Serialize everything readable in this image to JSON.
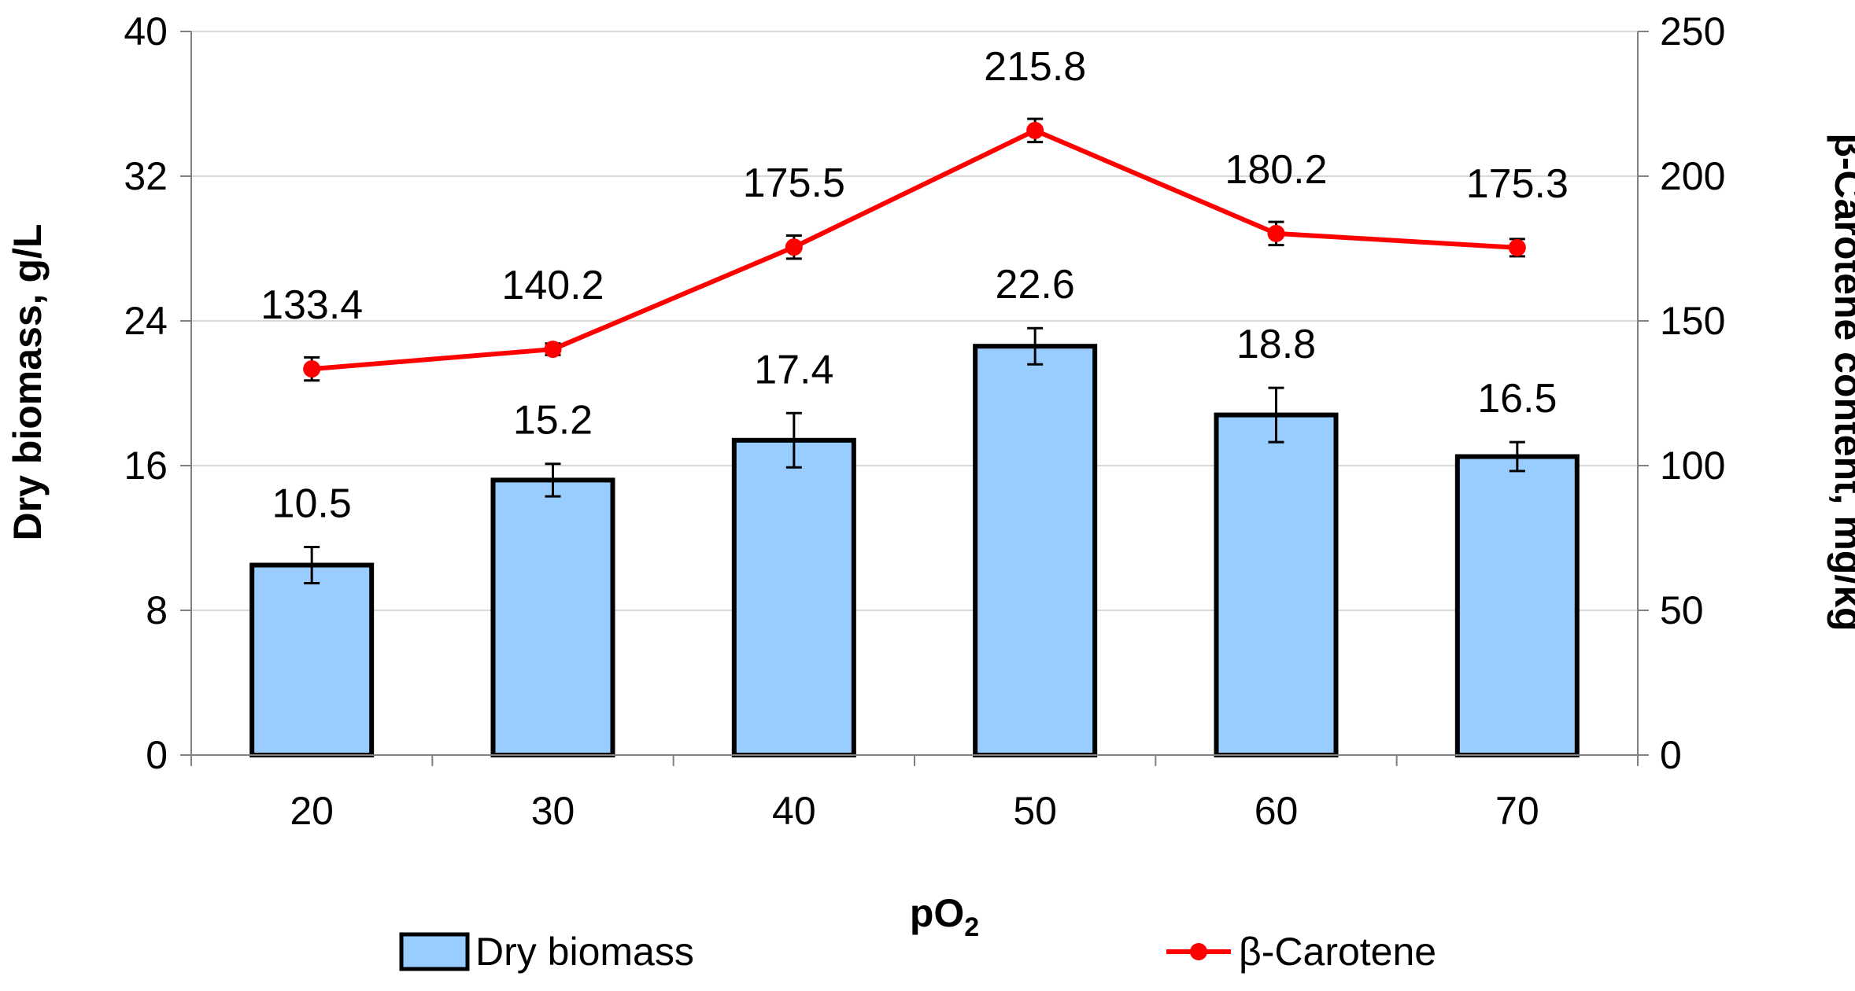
{
  "chart_data": {
    "type": "bar",
    "title": "",
    "categories": [
      "20",
      "30",
      "40",
      "50",
      "60",
      "70"
    ],
    "xlabel": "pO",
    "xlabel_sub": "2",
    "ylabel": "Dry biomass, g/L",
    "y2label": "β-Carotene content, mg/kg",
    "ylim": [
      0,
      40
    ],
    "yticks": [
      "0",
      "8",
      "16",
      "24",
      "32",
      "40"
    ],
    "y2lim": [
      0,
      250
    ],
    "y2ticks": [
      "0",
      "50",
      "100",
      "150",
      "200",
      "250"
    ],
    "grid": true,
    "legend_position": "bottom",
    "series": [
      {
        "name": "Dry biomass",
        "type": "bar",
        "axis": "left",
        "color": "#99ccff",
        "edge_color": "#000000",
        "values": [
          10.5,
          15.2,
          17.4,
          22.6,
          18.8,
          16.5
        ],
        "labels": [
          "10.5",
          "15.2",
          "17.4",
          "22.6",
          "18.8",
          "16.5"
        ],
        "errors": [
          1.0,
          0.9,
          1.5,
          1.0,
          1.5,
          0.8
        ]
      },
      {
        "name": "β-Carotene",
        "type": "line",
        "axis": "right",
        "color": "#ff0000",
        "values": [
          133.4,
          140.2,
          175.5,
          215.8,
          180.2,
          175.3
        ],
        "labels": [
          "133.4",
          "140.2",
          "175.5",
          "215.8",
          "180.2",
          "175.3"
        ],
        "errors": [
          4,
          2,
          4,
          4,
          4,
          3
        ]
      }
    ]
  }
}
